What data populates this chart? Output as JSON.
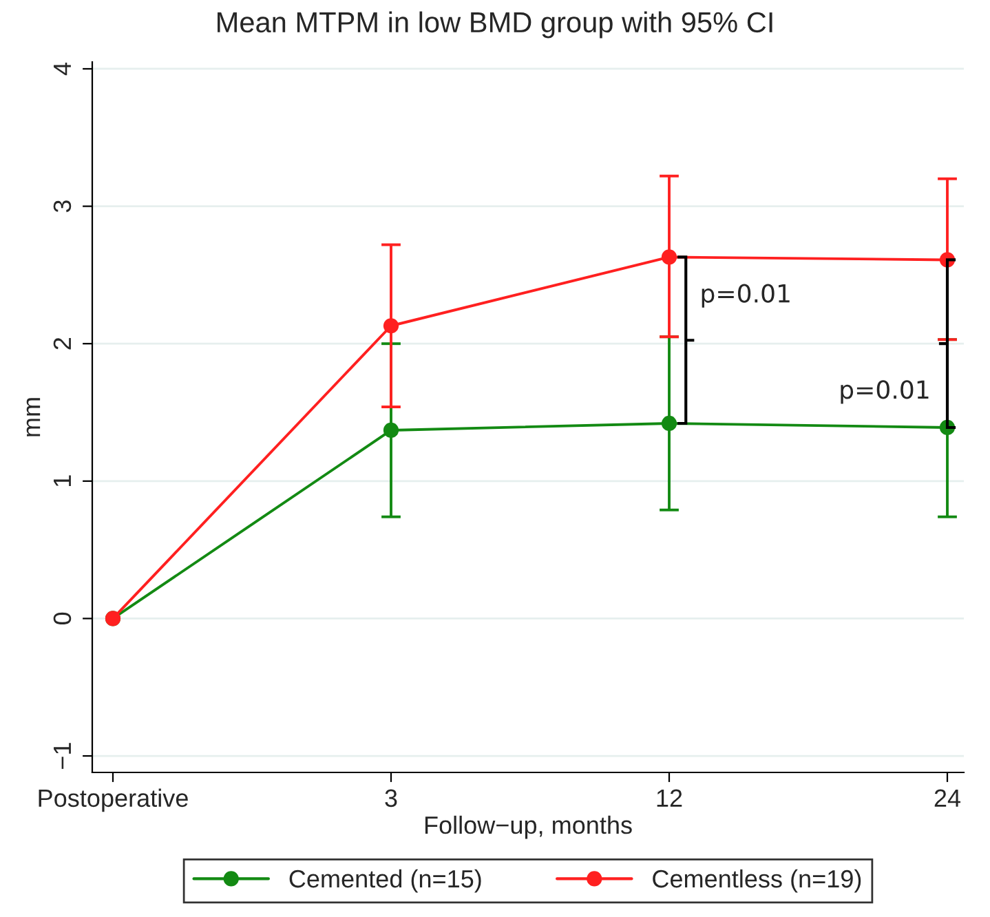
{
  "chart_data": {
    "type": "line",
    "title": "Mean MTPM in low BMD group with 95% CI",
    "xlabel": "Follow−up, months",
    "ylabel": "mm",
    "categories": [
      "Postoperative",
      "3",
      "12",
      "24"
    ],
    "series": [
      {
        "name": "Cemented (n=15)",
        "color": "#138a13",
        "values": [
          0,
          1.37,
          1.42,
          1.39
        ],
        "errors": [
          null,
          [
            0.74,
            2.0
          ],
          [
            0.79,
            2.05
          ],
          [
            0.74,
            2.03
          ]
        ]
      },
      {
        "name": "Cementless (n=19)",
        "color": "#ff2020",
        "values": [
          0,
          2.13,
          2.63,
          2.61
        ],
        "errors": [
          null,
          [
            1.54,
            2.72
          ],
          [
            2.05,
            3.22
          ],
          [
            2.03,
            3.2
          ]
        ]
      }
    ],
    "ylim": [
      -1.12,
      4.05
    ],
    "yticks": [
      {
        "value": -1,
        "label": "−1"
      },
      0,
      1,
      2,
      3,
      4
    ],
    "grid": "y",
    "legend": "bottom",
    "marker": "circle",
    "line_style": "solid",
    "annotations": [
      {
        "text": "p=0.01",
        "x": "12",
        "y": 2.35
      },
      {
        "text": "p=0.01",
        "x": "24",
        "y": 1.65
      }
    ]
  }
}
